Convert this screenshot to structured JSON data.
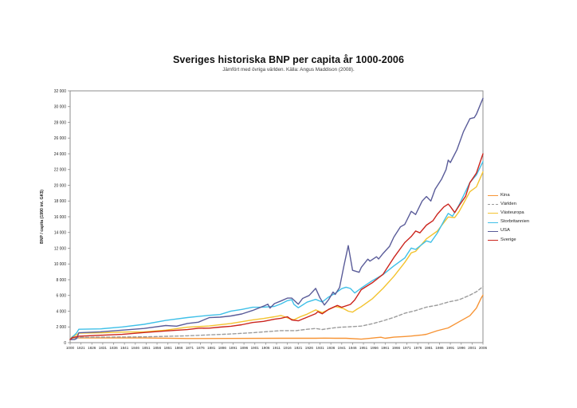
{
  "chart_data": {
    "type": "line",
    "title": "Sveriges historiska BNP per capita år 1000-2006",
    "subtitle": "Jämfört med övriga världen. Källa: Angus Maddison (2008).",
    "ylabel": "BNP / capita (1990 int. GK$)",
    "xlabel": "",
    "ylim": [
      0,
      32000
    ],
    "y_tick_step": 2000,
    "grid": false,
    "legend_position": "right",
    "y_tick_labels": [
      "0",
      "2 000",
      "4 000",
      "6 000",
      "8 000",
      "10 000",
      "12 000",
      "14 000",
      "16 000",
      "18 000",
      "20 000",
      "22 000",
      "24 000",
      "26 000",
      "28 000",
      "30 000",
      "32 000"
    ],
    "x_tick_labels": [
      "1000",
      "1821",
      "1826",
      "1831",
      "1836",
      "1841",
      "1846",
      "1851",
      "1856",
      "1861",
      "1866",
      "1871",
      "1876",
      "1881",
      "1886",
      "1891",
      "1896",
      "1901",
      "1906",
      "1911",
      "1916",
      "1921",
      "1926",
      "1931",
      "1936",
      "1941",
      "1946",
      "1951",
      "1956",
      "1961",
      "1966",
      "1971",
      "1976",
      "1981",
      "1986",
      "1991",
      "1996",
      "2001",
      "2006"
    ],
    "x_categories_spec": {
      "head": [
        1000,
        1500,
        1600,
        1700
      ],
      "annual_from": 1820,
      "annual_to": 2006
    },
    "series": [
      {
        "name": "Kina",
        "color": "#F79435",
        "dash": null,
        "points": [
          [
            1000,
            450
          ],
          [
            1500,
            600
          ],
          [
            1600,
            600
          ],
          [
            1700,
            600
          ],
          [
            1820,
            600
          ],
          [
            1850,
            600
          ],
          [
            1870,
            530
          ],
          [
            1890,
            540
          ],
          [
            1913,
            552
          ],
          [
            1929,
            562
          ],
          [
            1933,
            579
          ],
          [
            1938,
            562
          ],
          [
            1943,
            560
          ],
          [
            1950,
            448
          ],
          [
            1954,
            546
          ],
          [
            1957,
            637
          ],
          [
            1959,
            693
          ],
          [
            1961,
            559
          ],
          [
            1965,
            702
          ],
          [
            1970,
            778
          ],
          [
            1973,
            838
          ],
          [
            1978,
            979
          ],
          [
            1980,
            1061
          ],
          [
            1985,
            1519
          ],
          [
            1990,
            1871
          ],
          [
            1995,
            2653
          ],
          [
            2000,
            3421
          ],
          [
            2003,
            4392
          ],
          [
            2005,
            5575
          ],
          [
            2006,
            6048
          ]
        ]
      },
      {
        "name": "Världen",
        "color": "#9C9C9C",
        "dash": "4,2.6",
        "points": [
          [
            1000,
            435
          ],
          [
            1500,
            566
          ],
          [
            1600,
            596
          ],
          [
            1700,
            615
          ],
          [
            1820,
            667
          ],
          [
            1850,
            740
          ],
          [
            1870,
            870
          ],
          [
            1890,
            1100
          ],
          [
            1900,
            1261
          ],
          [
            1913,
            1525
          ],
          [
            1920,
            1534
          ],
          [
            1925,
            1700
          ],
          [
            1929,
            1806
          ],
          [
            1932,
            1675
          ],
          [
            1938,
            1900
          ],
          [
            1940,
            1958
          ],
          [
            1945,
            2030
          ],
          [
            1950,
            2111
          ],
          [
            1955,
            2400
          ],
          [
            1960,
            2773
          ],
          [
            1965,
            3210
          ],
          [
            1970,
            3736
          ],
          [
            1975,
            4080
          ],
          [
            1980,
            4520
          ],
          [
            1985,
            4760
          ],
          [
            1990,
            5162
          ],
          [
            1995,
            5450
          ],
          [
            2000,
            6038
          ],
          [
            2003,
            6470
          ],
          [
            2006,
            7123
          ]
        ]
      },
      {
        "name": "Västeuropa",
        "color": "#F3C32F",
        "dash": null,
        "points": [
          [
            1000,
            400
          ],
          [
            1500,
            771
          ],
          [
            1600,
            889
          ],
          [
            1700,
            997
          ],
          [
            1820,
            1204
          ],
          [
            1830,
            1248
          ],
          [
            1840,
            1350
          ],
          [
            1850,
            1376
          ],
          [
            1860,
            1588
          ],
          [
            1870,
            1960
          ],
          [
            1880,
            2120
          ],
          [
            1890,
            2440
          ],
          [
            1900,
            2893
          ],
          [
            1905,
            3070
          ],
          [
            1910,
            3290
          ],
          [
            1913,
            3458
          ],
          [
            1917,
            3060
          ],
          [
            1919,
            2910
          ],
          [
            1922,
            3300
          ],
          [
            1925,
            3620
          ],
          [
            1929,
            4159
          ],
          [
            1932,
            3817
          ],
          [
            1935,
            4200
          ],
          [
            1938,
            4588
          ],
          [
            1940,
            4480
          ],
          [
            1942,
            4300
          ],
          [
            1944,
            4000
          ],
          [
            1946,
            3880
          ],
          [
            1948,
            4250
          ],
          [
            1950,
            4579
          ],
          [
            1955,
            5560
          ],
          [
            1960,
            6896
          ],
          [
            1965,
            8430
          ],
          [
            1970,
            10195
          ],
          [
            1973,
            11416
          ],
          [
            1975,
            11600
          ],
          [
            1980,
            13197
          ],
          [
            1985,
            14180
          ],
          [
            1990,
            15966
          ],
          [
            1993,
            15900
          ],
          [
            1995,
            16650
          ],
          [
            2000,
            19176
          ],
          [
            2003,
            19800
          ],
          [
            2006,
            21700
          ]
        ]
      },
      {
        "name": "Storbritannien",
        "color": "#3FC0E8",
        "dash": null,
        "points": [
          [
            1000,
            400
          ],
          [
            1500,
            714
          ],
          [
            1600,
            974
          ],
          [
            1700,
            1250
          ],
          [
            1820,
            1706
          ],
          [
            1830,
            1749
          ],
          [
            1840,
            1990
          ],
          [
            1850,
            2330
          ],
          [
            1860,
            2830
          ],
          [
            1870,
            3190
          ],
          [
            1875,
            3330
          ],
          [
            1880,
            3477
          ],
          [
            1885,
            3574
          ],
          [
            1890,
            4009
          ],
          [
            1895,
            4222
          ],
          [
            1900,
            4492
          ],
          [
            1905,
            4520
          ],
          [
            1910,
            4611
          ],
          [
            1913,
            4921
          ],
          [
            1916,
            5340
          ],
          [
            1918,
            5459
          ],
          [
            1919,
            4870
          ],
          [
            1921,
            4439
          ],
          [
            1925,
            5144
          ],
          [
            1929,
            5503
          ],
          [
            1932,
            5168
          ],
          [
            1935,
            5799
          ],
          [
            1938,
            6266
          ],
          [
            1941,
            6866
          ],
          [
            1943,
            7049
          ],
          [
            1945,
            6883
          ],
          [
            1947,
            6308
          ],
          [
            1950,
            6939
          ],
          [
            1955,
            7868
          ],
          [
            1960,
            8645
          ],
          [
            1965,
            9752
          ],
          [
            1970,
            10767
          ],
          [
            1973,
            12025
          ],
          [
            1975,
            11847
          ],
          [
            1980,
            12931
          ],
          [
            1982,
            12747
          ],
          [
            1985,
            13923
          ],
          [
            1988,
            15451
          ],
          [
            1990,
            16430
          ],
          [
            1992,
            16073
          ],
          [
            1995,
            17495
          ],
          [
            2000,
            20353
          ],
          [
            2003,
            21310
          ],
          [
            2006,
            23013
          ]
        ]
      },
      {
        "name": "USA",
        "color": "#5A5C99",
        "dash": null,
        "points": [
          [
            1000,
            400
          ],
          [
            1500,
            400
          ],
          [
            1600,
            400
          ],
          [
            1700,
            527
          ],
          [
            1820,
            1257
          ],
          [
            1830,
            1376
          ],
          [
            1840,
            1588
          ],
          [
            1850,
            1806
          ],
          [
            1860,
            2178
          ],
          [
            1865,
            2100
          ],
          [
            1870,
            2445
          ],
          [
            1875,
            2600
          ],
          [
            1880,
            3184
          ],
          [
            1885,
            3240
          ],
          [
            1890,
            3392
          ],
          [
            1895,
            3644
          ],
          [
            1900,
            4091
          ],
          [
            1905,
            4642
          ],
          [
            1907,
            4890
          ],
          [
            1908,
            4390
          ],
          [
            1910,
            4964
          ],
          [
            1913,
            5301
          ],
          [
            1916,
            5659
          ],
          [
            1918,
            5659
          ],
          [
            1921,
            4879
          ],
          [
            1923,
            5620
          ],
          [
            1926,
            6000
          ],
          [
            1929,
            6899
          ],
          [
            1931,
            5691
          ],
          [
            1933,
            4777
          ],
          [
            1935,
            5467
          ],
          [
            1937,
            6430
          ],
          [
            1938,
            6126
          ],
          [
            1940,
            7010
          ],
          [
            1942,
            9741
          ],
          [
            1944,
            12333
          ],
          [
            1946,
            9197
          ],
          [
            1949,
            8944
          ],
          [
            1950,
            9561
          ],
          [
            1953,
            10613
          ],
          [
            1954,
            10359
          ],
          [
            1957,
            10920
          ],
          [
            1958,
            10631
          ],
          [
            1960,
            11328
          ],
          [
            1963,
            12242
          ],
          [
            1965,
            13419
          ],
          [
            1968,
            14715
          ],
          [
            1970,
            15030
          ],
          [
            1973,
            16689
          ],
          [
            1975,
            16284
          ],
          [
            1978,
            18000
          ],
          [
            1980,
            18577
          ],
          [
            1982,
            17995
          ],
          [
            1984,
            19500
          ],
          [
            1987,
            20800
          ],
          [
            1989,
            22000
          ],
          [
            1990,
            23201
          ],
          [
            1991,
            22882
          ],
          [
            1994,
            24500
          ],
          [
            1997,
            26800
          ],
          [
            2000,
            28467
          ],
          [
            2002,
            28600
          ],
          [
            2003,
            29037
          ],
          [
            2005,
            30400
          ],
          [
            2006,
            31049
          ]
        ]
      },
      {
        "name": "Sverige",
        "color": "#CB241D",
        "dash": null,
        "points": [
          [
            1000,
            400
          ],
          [
            1500,
            650
          ],
          [
            1600,
            700
          ],
          [
            1700,
            750
          ],
          [
            1820,
            819
          ],
          [
            1830,
            939
          ],
          [
            1840,
            1054
          ],
          [
            1850,
            1289
          ],
          [
            1860,
            1488
          ],
          [
            1870,
            1662
          ],
          [
            1875,
            1835
          ],
          [
            1880,
            1846
          ],
          [
            1885,
            1970
          ],
          [
            1890,
            2086
          ],
          [
            1895,
            2280
          ],
          [
            1900,
            2561
          ],
          [
            1905,
            2700
          ],
          [
            1910,
            2980
          ],
          [
            1913,
            3096
          ],
          [
            1916,
            3287
          ],
          [
            1918,
            2890
          ],
          [
            1921,
            2771
          ],
          [
            1925,
            3233
          ],
          [
            1929,
            3689
          ],
          [
            1930,
            3937
          ],
          [
            1932,
            3666
          ],
          [
            1935,
            4232
          ],
          [
            1939,
            4725
          ],
          [
            1941,
            4500
          ],
          [
            1945,
            4857
          ],
          [
            1947,
            5430
          ],
          [
            1950,
            6739
          ],
          [
            1955,
            7600
          ],
          [
            1960,
            8688
          ],
          [
            1965,
            10815
          ],
          [
            1970,
            12716
          ],
          [
            1973,
            13493
          ],
          [
            1975,
            14183
          ],
          [
            1977,
            13955
          ],
          [
            1980,
            14937
          ],
          [
            1983,
            15500
          ],
          [
            1985,
            16317
          ],
          [
            1988,
            17246
          ],
          [
            1990,
            17609
          ],
          [
            1991,
            17300
          ],
          [
            1993,
            16531
          ],
          [
            1995,
            17400
          ],
          [
            1998,
            18600
          ],
          [
            2000,
            20321
          ],
          [
            2003,
            21555
          ],
          [
            2006,
            24000
          ]
        ]
      }
    ]
  }
}
